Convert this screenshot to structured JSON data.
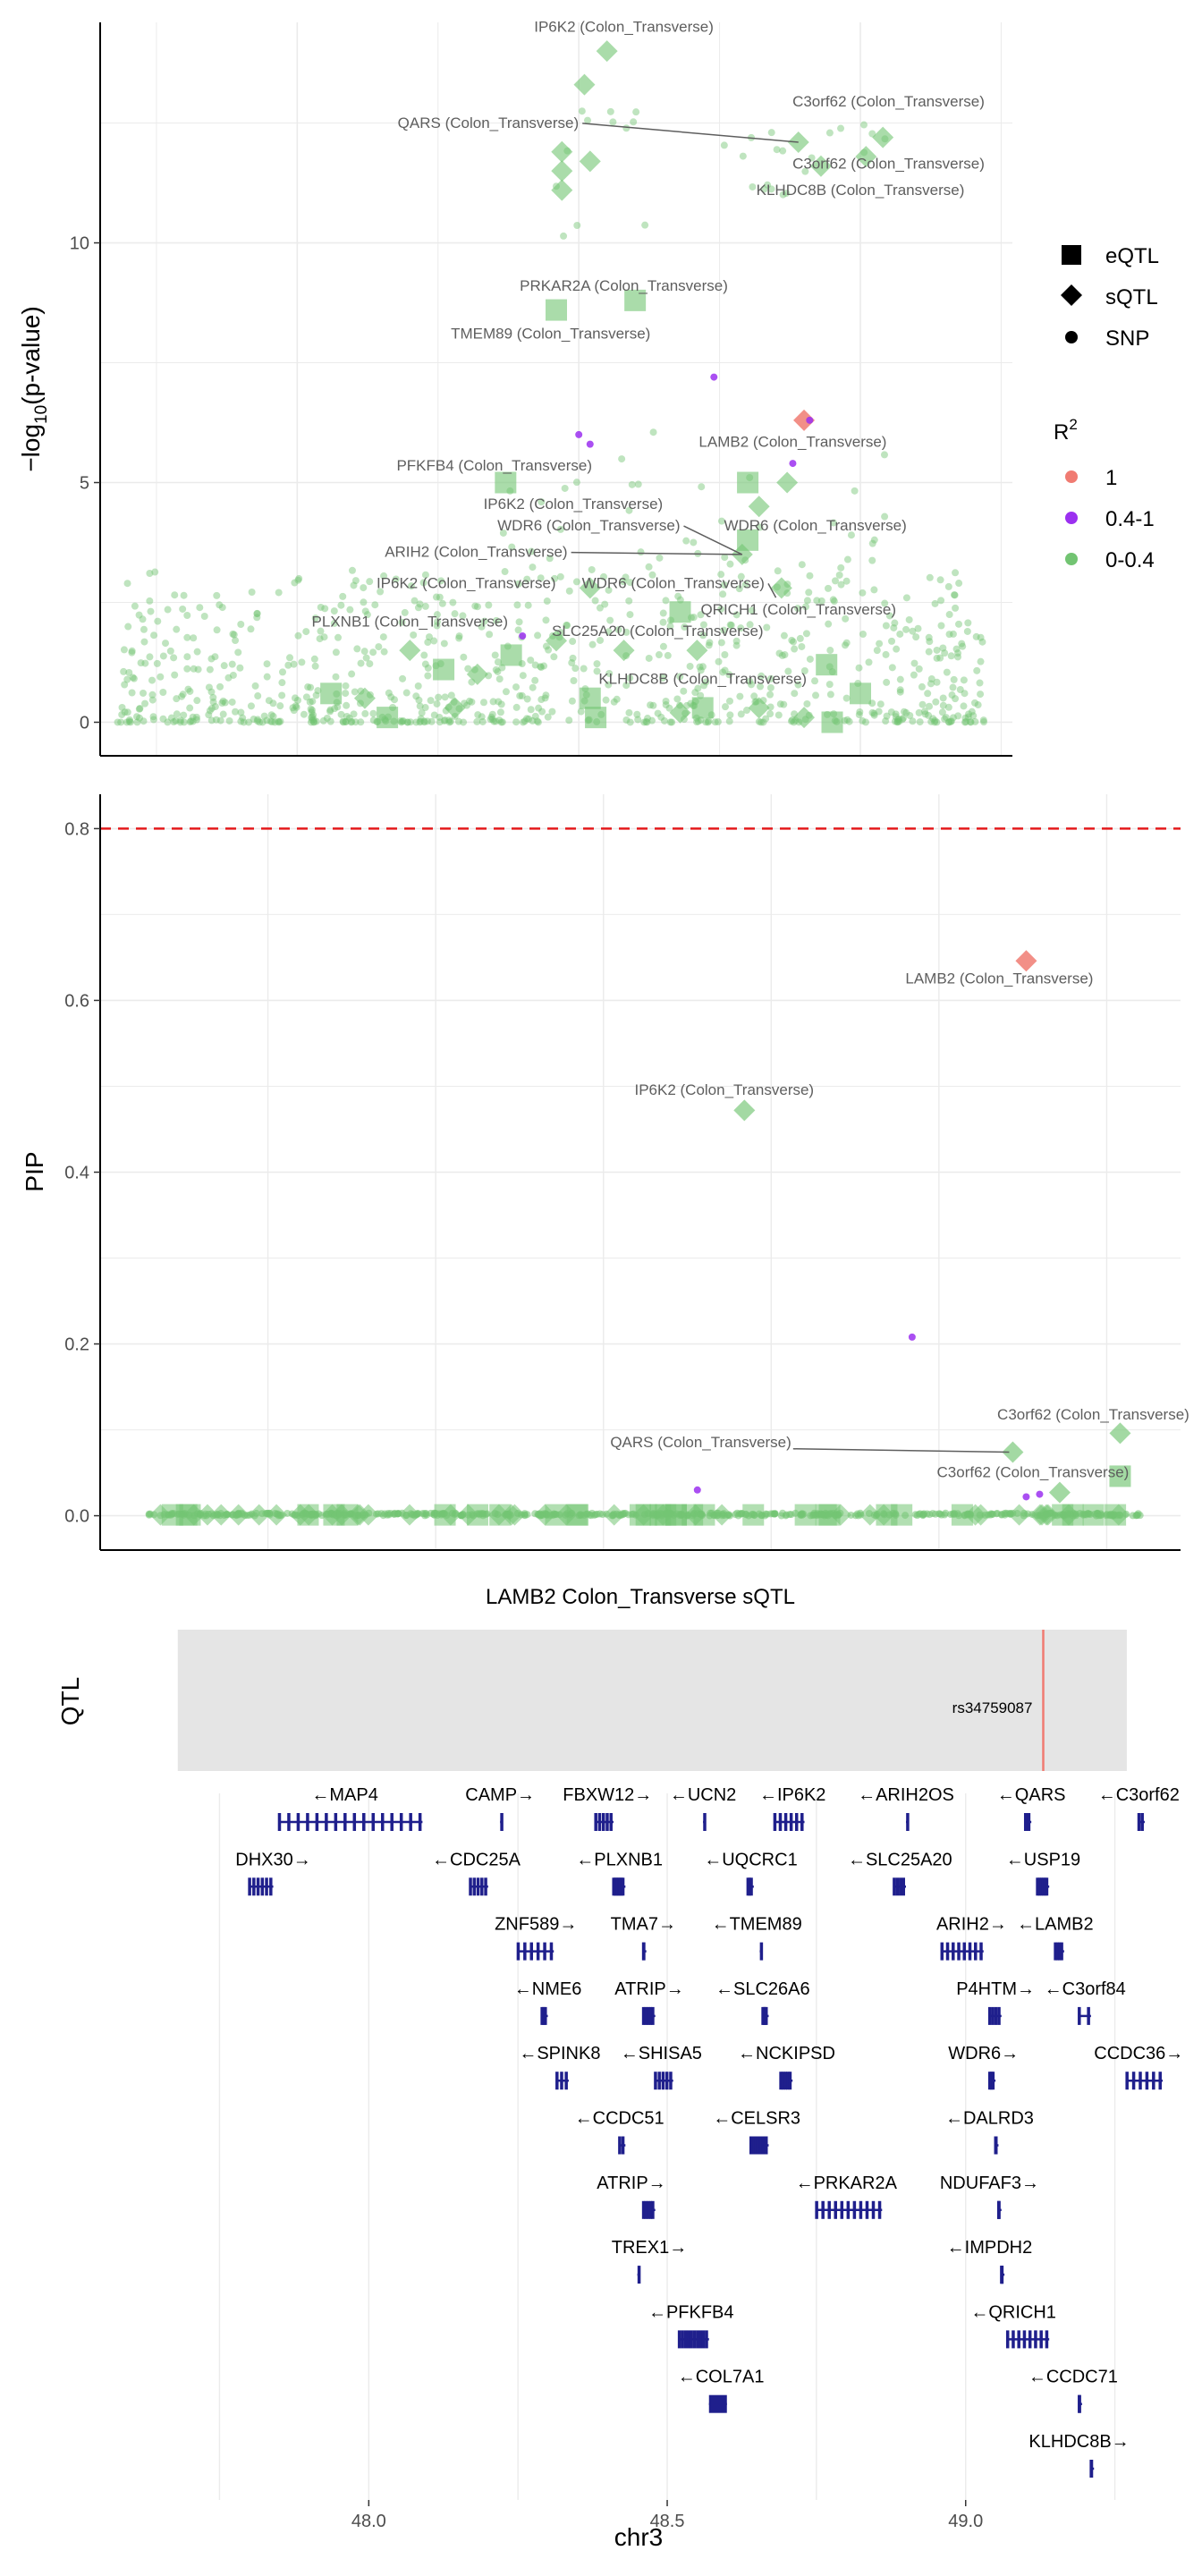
{
  "colors": {
    "r2_1": "#F07B72",
    "r2_mid": "#9B30F0",
    "r2_low": "#72C472",
    "threshold": "#E41A1C",
    "gene": "#1F1F8C",
    "qtl_band": "#E5E5E5",
    "qtl_line": "#F07B72"
  },
  "legend": {
    "shape_items": [
      {
        "shape": "square",
        "label": "eQTL"
      },
      {
        "shape": "diamond",
        "label": "sQTL"
      },
      {
        "shape": "circle",
        "label": "SNP"
      }
    ],
    "r2_title": "R",
    "r2_title_sup": "2",
    "r2_items": [
      {
        "label": "1",
        "color": "#F07B72"
      },
      {
        "label": "0.4-1",
        "color": "#9B30F0"
      },
      {
        "label": "0-0.4",
        "color": "#72C472"
      }
    ]
  },
  "chart_data": [
    {
      "type": "scatter",
      "ylabel_main": "−log",
      "ylabel_sub": "10",
      "ylabel_tail": "(p-value)",
      "xlim": [
        47.65,
        49.27
      ],
      "ylim": [
        -0.7,
        14.6
      ],
      "yticks": [
        "0",
        "5",
        "10"
      ],
      "ytick_values": [
        0,
        5,
        10
      ],
      "grid": true,
      "points": [
        {
          "x": 48.55,
          "y": 14.0,
          "shape": "diamond",
          "r2": "low"
        },
        {
          "x": 48.51,
          "y": 13.3,
          "shape": "diamond",
          "r2": "low"
        },
        {
          "x": 48.47,
          "y": 11.9,
          "shape": "diamond",
          "r2": "low"
        },
        {
          "x": 48.47,
          "y": 11.5,
          "shape": "diamond",
          "r2": "low"
        },
        {
          "x": 48.47,
          "y": 11.1,
          "shape": "diamond",
          "r2": "low"
        },
        {
          "x": 48.52,
          "y": 11.7,
          "shape": "diamond",
          "r2": "low"
        },
        {
          "x": 48.89,
          "y": 12.1,
          "shape": "diamond",
          "r2": "low"
        },
        {
          "x": 49.04,
          "y": 12.2,
          "shape": "diamond",
          "r2": "low"
        },
        {
          "x": 49.01,
          "y": 11.8,
          "shape": "diamond",
          "r2": "low"
        },
        {
          "x": 48.93,
          "y": 11.6,
          "shape": "diamond",
          "r2": "low"
        },
        {
          "x": 48.46,
          "y": 8.6,
          "shape": "square",
          "r2": "low"
        },
        {
          "x": 48.6,
          "y": 8.8,
          "shape": "square",
          "r2": "low"
        },
        {
          "x": 48.9,
          "y": 6.3,
          "shape": "diamond",
          "r2": "1"
        },
        {
          "x": 48.37,
          "y": 5.0,
          "shape": "square",
          "r2": "low"
        },
        {
          "x": 48.8,
          "y": 5.0,
          "shape": "square",
          "r2": "low"
        },
        {
          "x": 48.82,
          "y": 4.5,
          "shape": "diamond",
          "r2": "low"
        },
        {
          "x": 48.8,
          "y": 3.8,
          "shape": "square",
          "r2": "low"
        },
        {
          "x": 48.79,
          "y": 3.5,
          "shape": "diamond",
          "r2": "low"
        },
        {
          "x": 48.68,
          "y": 2.3,
          "shape": "square",
          "r2": "low"
        },
        {
          "x": 48.52,
          "y": 2.8,
          "shape": "diamond",
          "r2": "low"
        },
        {
          "x": 48.46,
          "y": 1.7,
          "shape": "diamond",
          "r2": "low"
        },
        {
          "x": 48.38,
          "y": 1.4,
          "shape": "square",
          "r2": "low"
        },
        {
          "x": 48.32,
          "y": 1.0,
          "shape": "diamond",
          "r2": "low"
        },
        {
          "x": 48.26,
          "y": 1.1,
          "shape": "square",
          "r2": "low"
        },
        {
          "x": 48.2,
          "y": 1.5,
          "shape": "diamond",
          "r2": "low"
        },
        {
          "x": 48.06,
          "y": 0.6,
          "shape": "square",
          "r2": "low"
        },
        {
          "x": 48.12,
          "y": 0.5,
          "shape": "diamond",
          "r2": "low"
        },
        {
          "x": 48.16,
          "y": 0.1,
          "shape": "square",
          "r2": "low"
        },
        {
          "x": 48.28,
          "y": 0.3,
          "shape": "diamond",
          "r2": "low"
        },
        {
          "x": 48.52,
          "y": 0.5,
          "shape": "square",
          "r2": "low"
        },
        {
          "x": 48.53,
          "y": 0.1,
          "shape": "square",
          "r2": "low"
        },
        {
          "x": 48.58,
          "y": 1.5,
          "shape": "diamond",
          "r2": "low"
        },
        {
          "x": 48.72,
          "y": 0.3,
          "shape": "square",
          "r2": "low"
        },
        {
          "x": 48.82,
          "y": 0.3,
          "shape": "diamond",
          "r2": "low"
        },
        {
          "x": 48.94,
          "y": 1.2,
          "shape": "square",
          "r2": "low"
        },
        {
          "x": 48.9,
          "y": 0.1,
          "shape": "diamond",
          "r2": "low"
        },
        {
          "x": 48.95,
          "y": 0.0,
          "shape": "square",
          "r2": "low"
        },
        {
          "x": 49.0,
          "y": 0.6,
          "shape": "square",
          "r2": "low"
        },
        {
          "x": 48.71,
          "y": 1.5,
          "shape": "diamond",
          "r2": "low"
        },
        {
          "x": 48.68,
          "y": 0.2,
          "shape": "diamond",
          "r2": "low"
        },
        {
          "x": 48.86,
          "y": 2.8,
          "shape": "diamond",
          "r2": "low"
        },
        {
          "x": 48.87,
          "y": 5.0,
          "shape": "diamond",
          "r2": "low"
        },
        {
          "x": 48.5,
          "y": 6.0,
          "shape": "circle",
          "r2": "mid"
        },
        {
          "x": 48.74,
          "y": 7.2,
          "shape": "circle",
          "r2": "mid"
        },
        {
          "x": 48.52,
          "y": 5.8,
          "shape": "circle",
          "r2": "mid"
        },
        {
          "x": 48.88,
          "y": 5.4,
          "shape": "circle",
          "r2": "mid"
        },
        {
          "x": 48.91,
          "y": 6.3,
          "shape": "circle",
          "r2": "mid"
        },
        {
          "x": 48.4,
          "y": 1.8,
          "shape": "circle",
          "r2": "mid"
        }
      ],
      "annotations": [
        {
          "text": "IP6K2 (Colon_Transverse)",
          "tx": 48.58,
          "ty": 14.4
        },
        {
          "text": "C3orf62 (Colon_Transverse)",
          "tx": 49.05,
          "ty": 12.85
        },
        {
          "text": "QARS (Colon_Transverse)",
          "tx": 48.5,
          "ty": 12.4,
          "lx": 48.89,
          "ly": 12.1
        },
        {
          "text": "C3orf62 (Colon_Transverse)",
          "tx": 49.05,
          "ty": 11.55
        },
        {
          "text": "KLHDC8B (Colon_Transverse)",
          "tx": 49.0,
          "ty": 11.0
        },
        {
          "text": "PRKAR2A (Colon_Transverse)",
          "tx": 48.58,
          "ty": 9.0
        },
        {
          "text": "TMEM89 (Colon_Transverse)",
          "tx": 48.45,
          "ty": 8.0
        },
        {
          "text": "LAMB2 (Colon_Transverse)",
          "tx": 48.88,
          "ty": 5.75
        },
        {
          "text": "PFKFB4 (Colon_Transverse)",
          "tx": 48.35,
          "ty": 5.25
        },
        {
          "text": "IP6K2 (Colon_Transverse)",
          "tx": 48.49,
          "ty": 4.45
        },
        {
          "text": "WDR6 (Colon_Transverse)",
          "tx": 48.92,
          "ty": 4.0
        },
        {
          "text": "WDR6 (Colon_Transverse)",
          "tx": 48.68,
          "ty": 4.0,
          "lx": 48.79,
          "ly": 3.5
        },
        {
          "text": "ARIH2 (Colon_Transverse)",
          "tx": 48.48,
          "ty": 3.45,
          "lx": 48.79,
          "ly": 3.5
        },
        {
          "text": "IP6K2 (Colon_Transverse)",
          "tx": 48.3,
          "ty": 2.8
        },
        {
          "text": "WDR6 (Colon_Transverse)",
          "tx": 48.83,
          "ty": 2.8,
          "lx": 48.85,
          "ly": 2.6
        },
        {
          "text": "QRICH1 (Colon_Transverse)",
          "tx": 48.89,
          "ty": 2.25
        },
        {
          "text": "PLXNB1 (Colon_Transverse)",
          "tx": 48.2,
          "ty": 2.0
        },
        {
          "text": "SLC25A20 (Colon_Transverse)",
          "tx": 48.64,
          "ty": 1.8
        },
        {
          "text": "KLHDC8B (Colon_Transverse)",
          "tx": 48.72,
          "ty": 0.8
        }
      ]
    },
    {
      "type": "scatter",
      "ylabel": "PIP",
      "xlim": [
        47.75,
        49.36
      ],
      "ylim": [
        -0.04,
        0.84
      ],
      "yticks": [
        "0.0",
        "0.2",
        "0.4",
        "0.6",
        "0.8"
      ],
      "ytick_values": [
        0.0,
        0.2,
        0.4,
        0.6,
        0.8
      ],
      "threshold": 0.8,
      "grid": true,
      "points": [
        {
          "x": 49.13,
          "y": 0.646,
          "shape": "diamond",
          "r2": "1"
        },
        {
          "x": 48.71,
          "y": 0.472,
          "shape": "diamond",
          "r2": "low"
        },
        {
          "x": 48.96,
          "y": 0.208,
          "shape": "circle",
          "r2": "mid"
        },
        {
          "x": 49.11,
          "y": 0.074,
          "shape": "diamond",
          "r2": "low"
        },
        {
          "x": 49.27,
          "y": 0.096,
          "shape": "diamond",
          "r2": "low"
        },
        {
          "x": 49.27,
          "y": 0.046,
          "shape": "square",
          "r2": "low"
        },
        {
          "x": 49.18,
          "y": 0.027,
          "shape": "diamond",
          "r2": "low"
        },
        {
          "x": 49.15,
          "y": 0.025,
          "shape": "circle",
          "r2": "mid"
        },
        {
          "x": 49.13,
          "y": 0.022,
          "shape": "circle",
          "r2": "mid"
        },
        {
          "x": 48.64,
          "y": 0.03,
          "shape": "circle",
          "r2": "mid"
        }
      ],
      "annotations": [
        {
          "text": "LAMB2 (Colon_Transverse)",
          "tx": 49.09,
          "ty": 0.62
        },
        {
          "text": "IP6K2 (Colon_Transverse)",
          "tx": 48.68,
          "ty": 0.49
        },
        {
          "text": "C3orf62 (Colon_Transverse)",
          "tx": 49.23,
          "ty": 0.112
        },
        {
          "text": "QARS (Colon_Transverse)",
          "tx": 48.78,
          "ty": 0.08,
          "lx": 49.11,
          "ly": 0.074
        },
        {
          "text": "C3orf62 (Colon_Transverse)",
          "tx": 49.14,
          "ty": 0.045
        }
      ]
    }
  ],
  "qtl_panel": {
    "title": "LAMB2 Colon_Transverse sQTL",
    "ylabel": "QTL",
    "snp_label": "rs34759087",
    "snp_pos": 49.13,
    "range": [
      47.68,
      49.27
    ]
  },
  "gene_track": {
    "xlabel": "chr3",
    "xlim": [
      47.55,
      49.36
    ],
    "xticks": [
      "48.0",
      "48.5",
      "49.0"
    ],
    "xtick_values": [
      48.0,
      48.5,
      49.0
    ],
    "genes": [
      {
        "label": "←MAP4",
        "lx": 47.96,
        "row": 0,
        "start": 47.85,
        "end": 48.09,
        "exons": 16
      },
      {
        "label": "CAMP→",
        "lx": 48.22,
        "row": 0,
        "start": 48.22,
        "end": 48.225,
        "exons": 1
      },
      {
        "label": "FBXW12→",
        "lx": 48.4,
        "row": 0,
        "start": 48.38,
        "end": 48.41,
        "exons": 5
      },
      {
        "label": "←UCN2",
        "lx": 48.56,
        "row": 0,
        "start": 48.56,
        "end": 48.565,
        "exons": 1
      },
      {
        "label": "←IP6K2",
        "lx": 48.71,
        "row": 0,
        "start": 48.68,
        "end": 48.73,
        "exons": 6
      },
      {
        "label": "←ARIH2OS",
        "lx": 48.9,
        "row": 0,
        "start": 48.9,
        "end": 48.905,
        "exons": 1
      },
      {
        "label": "←QARS",
        "lx": 49.11,
        "row": 0,
        "start": 49.1,
        "end": 49.11,
        "exons": 3
      },
      {
        "label": "←C3orf62",
        "lx": 49.29,
        "row": 0,
        "start": 49.29,
        "end": 49.3,
        "exons": 2
      },
      {
        "label": "DHX30→",
        "lx": 47.84,
        "row": 1,
        "start": 47.8,
        "end": 47.84,
        "exons": 6
      },
      {
        "label": "←CDC25A",
        "lx": 48.18,
        "row": 1,
        "start": 48.17,
        "end": 48.2,
        "exons": 5
      },
      {
        "label": "←PLXNB1",
        "lx": 48.42,
        "row": 1,
        "start": 48.41,
        "end": 48.43,
        "exons": 8
      },
      {
        "label": "←UQCRC1",
        "lx": 48.64,
        "row": 1,
        "start": 48.635,
        "end": 48.645,
        "exons": 3
      },
      {
        "label": "←SLC25A20",
        "lx": 48.89,
        "row": 1,
        "start": 48.88,
        "end": 48.9,
        "exons": 4
      },
      {
        "label": "←USP19",
        "lx": 49.13,
        "row": 1,
        "start": 49.12,
        "end": 49.14,
        "exons": 6
      },
      {
        "label": "ZNF589→",
        "lx": 48.28,
        "row": 2,
        "start": 48.25,
        "end": 48.31,
        "exons": 6
      },
      {
        "label": "TMA7→",
        "lx": 48.46,
        "row": 2,
        "start": 48.46,
        "end": 48.465,
        "exons": 2
      },
      {
        "label": "←TMEM89",
        "lx": 48.65,
        "row": 2,
        "start": 48.655,
        "end": 48.66,
        "exons": 1
      },
      {
        "label": "ARIH2→",
        "lx": 49.01,
        "row": 2,
        "start": 48.96,
        "end": 49.03,
        "exons": 8
      },
      {
        "label": "←LAMB2",
        "lx": 49.15,
        "row": 2,
        "start": 49.15,
        "end": 49.165,
        "exons": 4
      },
      {
        "label": "←NME6",
        "lx": 48.3,
        "row": 3,
        "start": 48.29,
        "end": 48.3,
        "exons": 3
      },
      {
        "label": "ATRIP→",
        "lx": 48.47,
        "row": 3,
        "start": 48.46,
        "end": 48.48,
        "exons": 5
      },
      {
        "label": "←SLC26A6",
        "lx": 48.66,
        "row": 3,
        "start": 48.66,
        "end": 48.67,
        "exons": 4
      },
      {
        "label": "P4HTM→",
        "lx": 49.05,
        "row": 3,
        "start": 49.04,
        "end": 49.06,
        "exons": 4
      },
      {
        "label": "←C3orf84",
        "lx": 49.2,
        "row": 3,
        "start": 49.19,
        "end": 49.21,
        "exons": 2
      },
      {
        "label": "←SPINK8",
        "lx": 48.32,
        "row": 4,
        "start": 48.315,
        "end": 48.335,
        "exons": 3
      },
      {
        "label": "←SHISA5",
        "lx": 48.49,
        "row": 4,
        "start": 48.48,
        "end": 48.51,
        "exons": 5
      },
      {
        "label": "←NCKIPSD",
        "lx": 48.7,
        "row": 4,
        "start": 48.69,
        "end": 48.71,
        "exons": 5
      },
      {
        "label": "WDR6→",
        "lx": 49.03,
        "row": 4,
        "start": 49.04,
        "end": 49.05,
        "exons": 3
      },
      {
        "label": "CCDC36→",
        "lx": 49.29,
        "row": 4,
        "start": 49.27,
        "end": 49.33,
        "exons": 6
      },
      {
        "label": "←CCDC51",
        "lx": 48.42,
        "row": 5,
        "start": 48.42,
        "end": 48.43,
        "exons": 2
      },
      {
        "label": "←CELSR3",
        "lx": 48.65,
        "row": 5,
        "start": 48.64,
        "end": 48.67,
        "exons": 14
      },
      {
        "label": "←DALRD3",
        "lx": 49.04,
        "row": 5,
        "start": 49.05,
        "end": 49.055,
        "exons": 4
      },
      {
        "label": "ATRIP→",
        "lx": 48.44,
        "row": 6,
        "start": 48.46,
        "end": 48.48,
        "exons": 5
      },
      {
        "label": "←PRKAR2A",
        "lx": 48.8,
        "row": 6,
        "start": 48.75,
        "end": 48.86,
        "exons": 11
      },
      {
        "label": "NDUFAF3→",
        "lx": 49.04,
        "row": 6,
        "start": 49.055,
        "end": 49.06,
        "exons": 3
      },
      {
        "label": "TREX1→",
        "lx": 48.47,
        "row": 7,
        "start": 48.45,
        "end": 48.455,
        "exons": 1
      },
      {
        "label": "←IMPDH2",
        "lx": 49.04,
        "row": 7,
        "start": 49.06,
        "end": 49.065,
        "exons": 6
      },
      {
        "label": "←PFKFB4",
        "lx": 48.54,
        "row": 8,
        "start": 48.52,
        "end": 48.57,
        "exons": 10
      },
      {
        "label": "←QRICH1",
        "lx": 49.08,
        "row": 8,
        "start": 49.07,
        "end": 49.14,
        "exons": 8
      },
      {
        "label": "←COL7A1",
        "lx": 48.59,
        "row": 9,
        "start": 48.57,
        "end": 48.6,
        "exons": 40
      },
      {
        "label": "←CCDC71",
        "lx": 49.18,
        "row": 9,
        "start": 49.19,
        "end": 49.195,
        "exons": 2
      },
      {
        "label": "KLHDC8B→",
        "lx": 49.19,
        "row": 10,
        "start": 49.21,
        "end": 49.215,
        "exons": 3
      }
    ]
  }
}
